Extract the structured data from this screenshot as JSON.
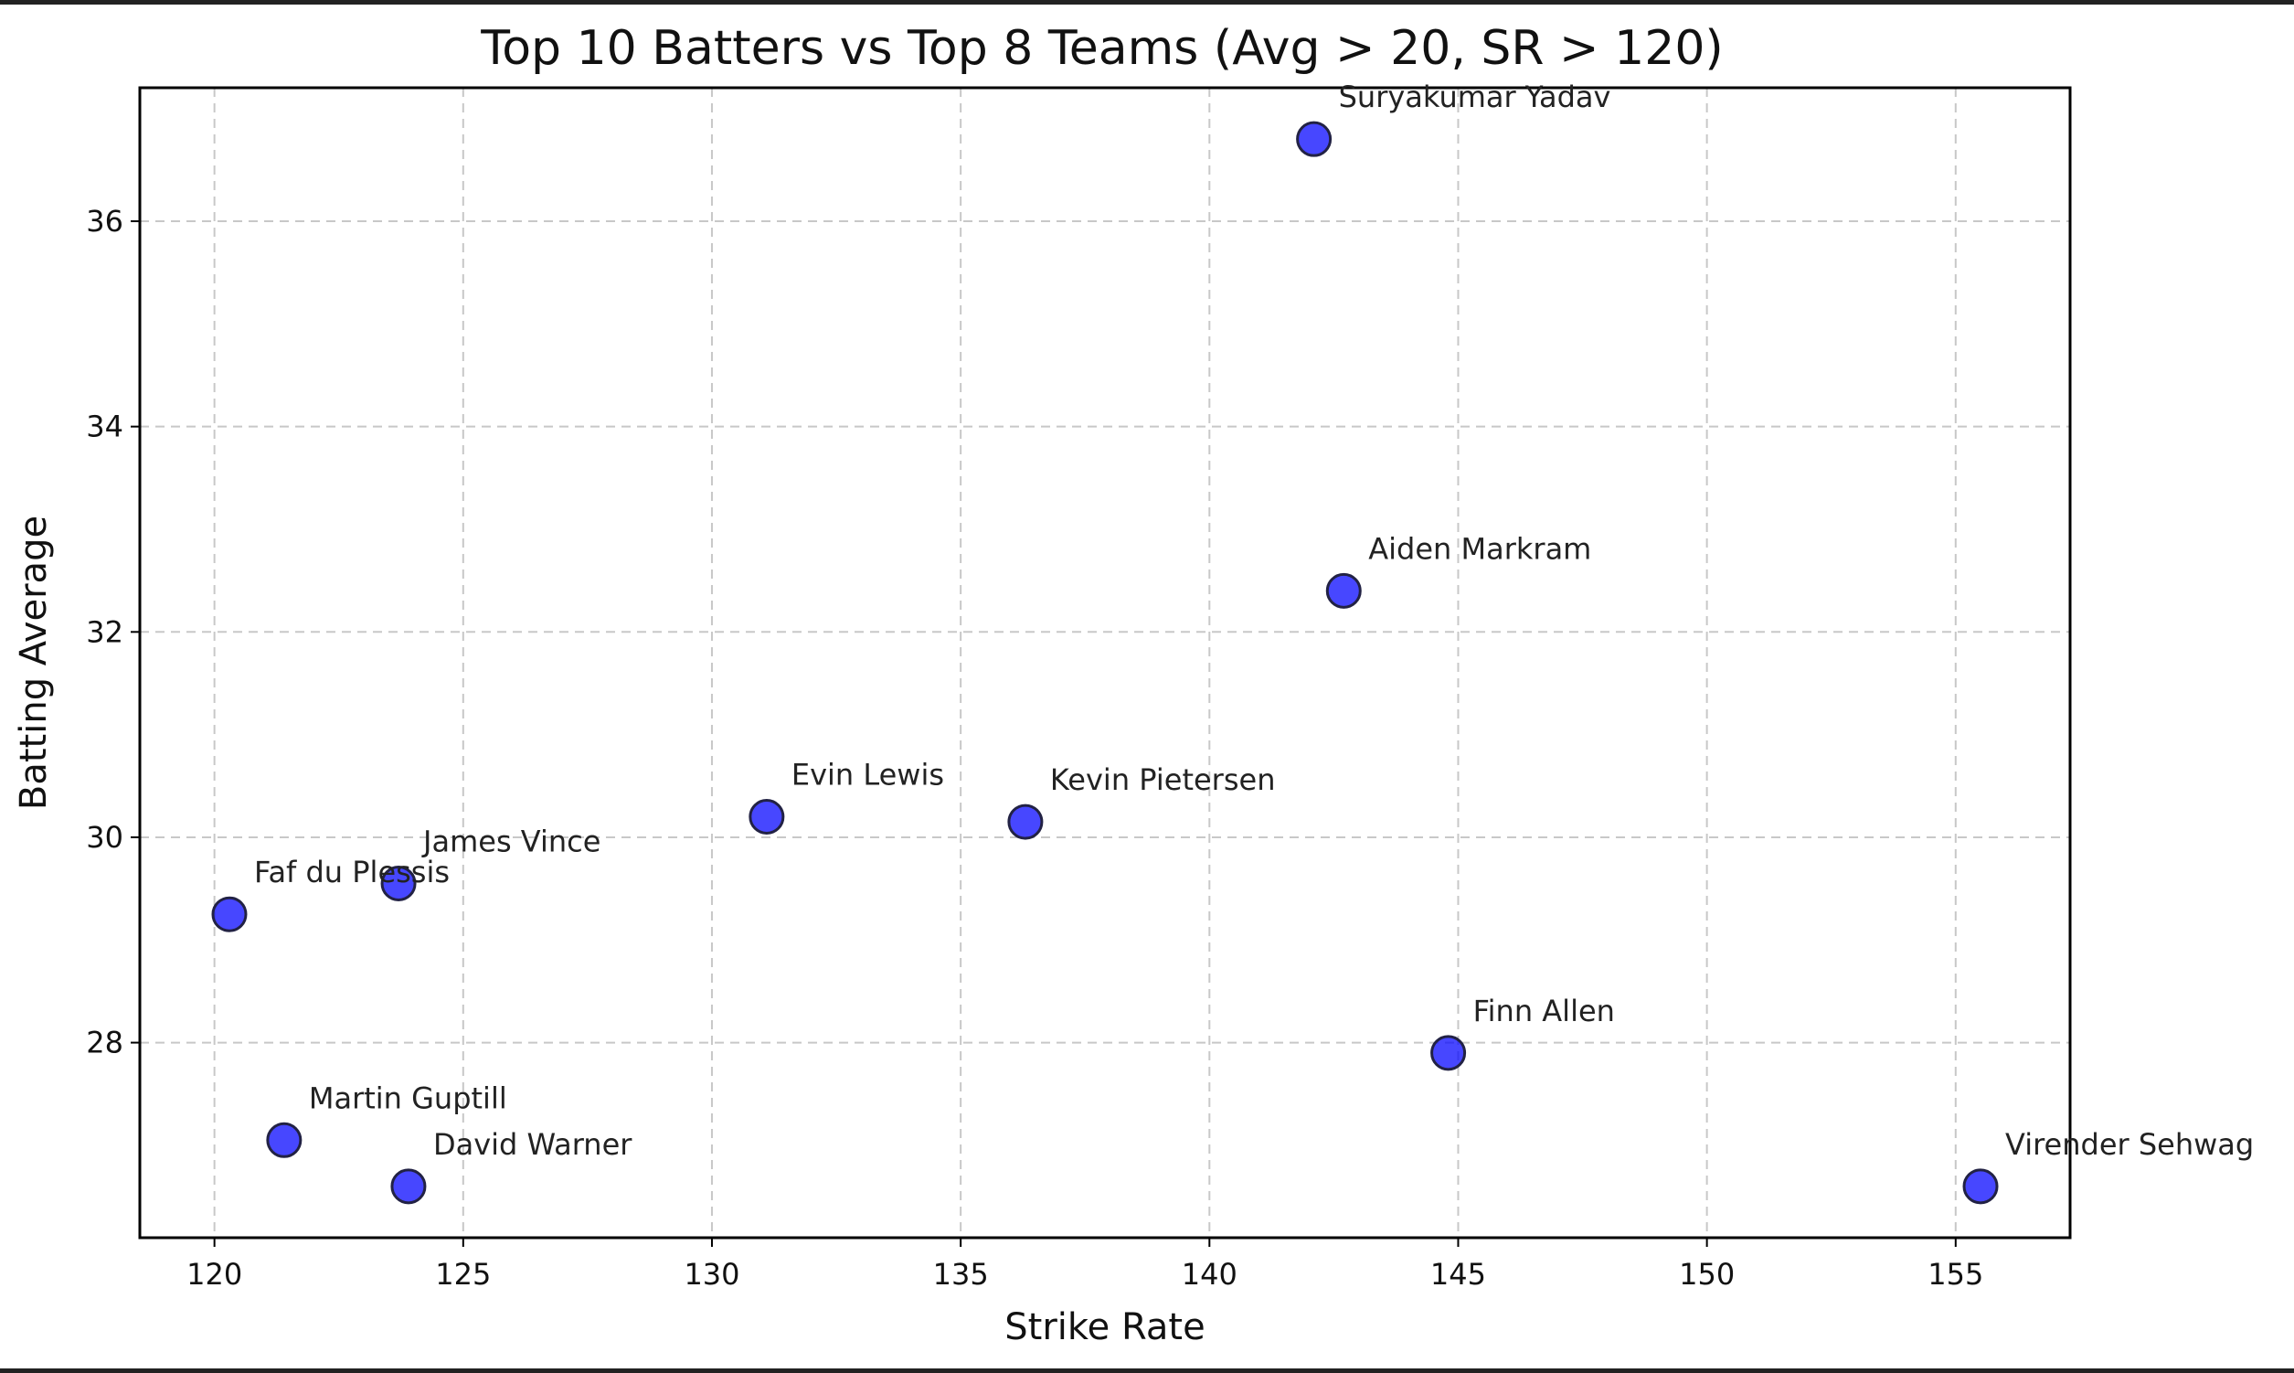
{
  "chart_data": {
    "type": "scatter",
    "title": "Top 10 Batters vs Top 8 Teams (Avg > 20, SR > 120)",
    "xlabel": "Strike Rate",
    "ylabel": "Batting Average",
    "xlim": [
      118.5,
      157.3
    ],
    "ylim": [
      26.1,
      37.3
    ],
    "xticks": [
      120,
      125,
      130,
      135,
      140,
      145,
      150,
      155
    ],
    "yticks": [
      28,
      30,
      32,
      34,
      36
    ],
    "grid": true,
    "marker_color": "#0000ff",
    "marker_edge_color": "#222244",
    "points": [
      {
        "name": "Suryakumar Yadav",
        "x": 142.1,
        "y": 36.8
      },
      {
        "name": "Aiden Markram",
        "x": 142.7,
        "y": 32.4
      },
      {
        "name": "Evin Lewis",
        "x": 131.1,
        "y": 30.2
      },
      {
        "name": "Kevin Pietersen",
        "x": 136.3,
        "y": 30.15
      },
      {
        "name": "James Vince",
        "x": 123.7,
        "y": 29.55
      },
      {
        "name": "Faf du Plessis",
        "x": 120.3,
        "y": 29.25
      },
      {
        "name": "Finn Allen",
        "x": 144.8,
        "y": 27.9
      },
      {
        "name": "Martin Guptill",
        "x": 121.4,
        "y": 27.05
      },
      {
        "name": "David Warner",
        "x": 123.9,
        "y": 26.6
      },
      {
        "name": "Virender Sehwag",
        "x": 155.5,
        "y": 26.6
      }
    ]
  }
}
